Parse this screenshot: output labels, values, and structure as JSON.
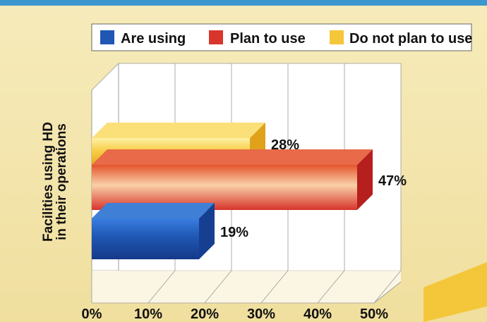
{
  "colors": {
    "background": "#f3e7b0",
    "top_strip": "#3c97cf",
    "plot_bg": "#ffffff",
    "are_using": "#1f57b3",
    "plan_to_use": "#d9362b",
    "do_not_plan_to_use": "#f4c63a"
  },
  "legend": {
    "items": [
      {
        "label": "Are using",
        "color": "#1f57b3"
      },
      {
        "label": "Plan to use",
        "color": "#d9362b"
      },
      {
        "label": "Do not plan to use",
        "color": "#f4c63a"
      }
    ]
  },
  "chart_data": {
    "type": "bar",
    "orientation": "horizontal",
    "style": "3d",
    "title": "",
    "ylabel": "Facilities using HD in their operations",
    "xlabel": "",
    "xlim": [
      0,
      50
    ],
    "x_ticks": [
      "0%",
      "10%",
      "20%",
      "30%",
      "40%",
      "50%"
    ],
    "x_tick_values": [
      0,
      10,
      20,
      30,
      40,
      50
    ],
    "grid": true,
    "legend_position": "top",
    "series": [
      {
        "name": "Do not plan to use",
        "value": 28,
        "label": "28%",
        "color": "#f4c63a"
      },
      {
        "name": "Plan to use",
        "value": 47,
        "label": "47%",
        "color": "#d9362b"
      },
      {
        "name": "Are using",
        "value": 19,
        "label": "19%",
        "color": "#1f57b3"
      }
    ],
    "ylabel_lines": [
      "Facilities using HD",
      "in their operations"
    ]
  }
}
